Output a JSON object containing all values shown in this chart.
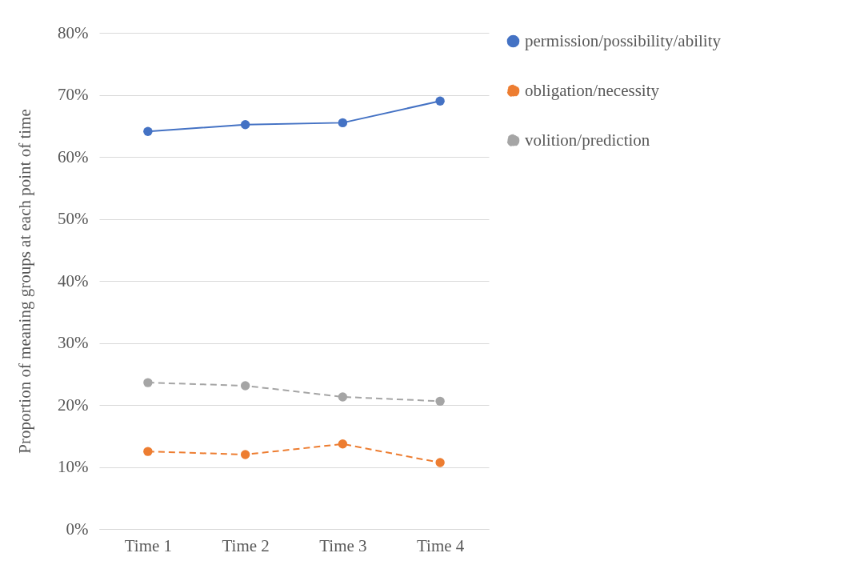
{
  "chart_data": {
    "type": "line",
    "ylabel": "Proportion of meaning groups at each point of time",
    "categories": [
      "Time 1",
      "Time 2",
      "Time 3",
      "Time 4"
    ],
    "series": [
      {
        "name": "permission/possibility/ability",
        "color": "#4472c4",
        "line_style": "solid",
        "values": [
          64.1,
          65.2,
          65.5,
          69.0
        ]
      },
      {
        "name": "obligation/necessity",
        "color": "#ed7d31",
        "line_style": "dashed",
        "values": [
          12.5,
          12.0,
          13.7,
          10.7
        ]
      },
      {
        "name": "volition/prediction",
        "color": "#a5a5a5",
        "line_style": "dashed",
        "values": [
          23.6,
          23.1,
          21.3,
          20.6
        ]
      }
    ],
    "ylim": [
      0,
      80
    ],
    "yticks": [
      {
        "value": 0,
        "label": "0%"
      },
      {
        "value": 10,
        "label": "10%"
      },
      {
        "value": 20,
        "label": "20%"
      },
      {
        "value": 30,
        "label": "30%"
      },
      {
        "value": 40,
        "label": "40%"
      },
      {
        "value": 50,
        "label": "50%"
      },
      {
        "value": 60,
        "label": "60%"
      },
      {
        "value": 70,
        "label": "70%"
      },
      {
        "value": 80,
        "label": "80%"
      }
    ],
    "grid": "y",
    "legend": "right",
    "marker": "circle"
  }
}
